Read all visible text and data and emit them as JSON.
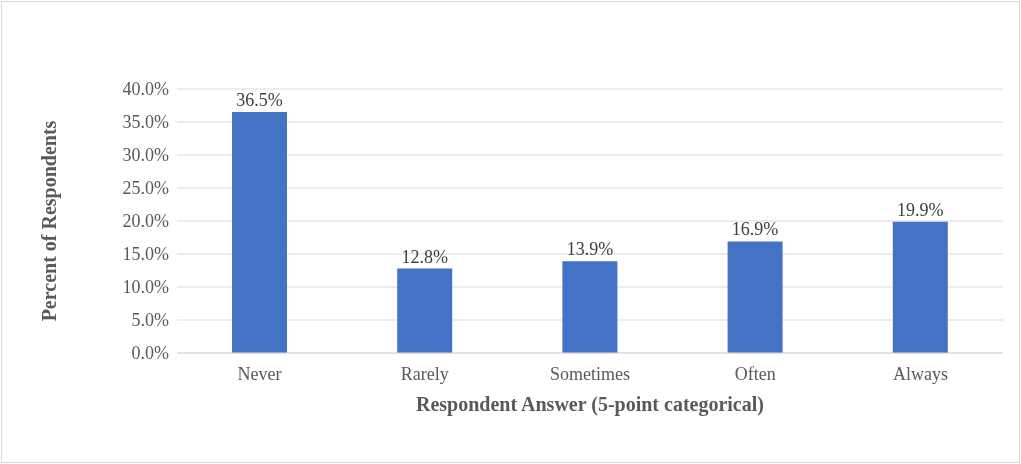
{
  "chart_data": {
    "type": "bar",
    "xlabel": "Respondent Answer (5-point categorical)",
    "ylabel": "Percent of Respondents",
    "categories": [
      "Never",
      "Rarely",
      "Sometimes",
      "Often",
      "Always"
    ],
    "values": [
      36.5,
      12.8,
      13.9,
      16.9,
      19.9
    ],
    "value_labels": [
      "36.5%",
      "12.8%",
      "13.9%",
      "16.9%",
      "19.9%"
    ],
    "color": "#4472c4",
    "ylim": [
      0,
      40
    ],
    "yticks": [
      {
        "value": 0,
        "label": "0.0%"
      },
      {
        "value": 5,
        "label": "5.0%"
      },
      {
        "value": 10,
        "label": "10.0%"
      },
      {
        "value": 15,
        "label": "15.0%"
      },
      {
        "value": 20,
        "label": "20.0%"
      },
      {
        "value": 25,
        "label": "25.0%"
      },
      {
        "value": 30,
        "label": "30.0%"
      },
      {
        "value": 35,
        "label": "35.0%"
      },
      {
        "value": 40,
        "label": "40.0%"
      }
    ],
    "grid": "y"
  }
}
